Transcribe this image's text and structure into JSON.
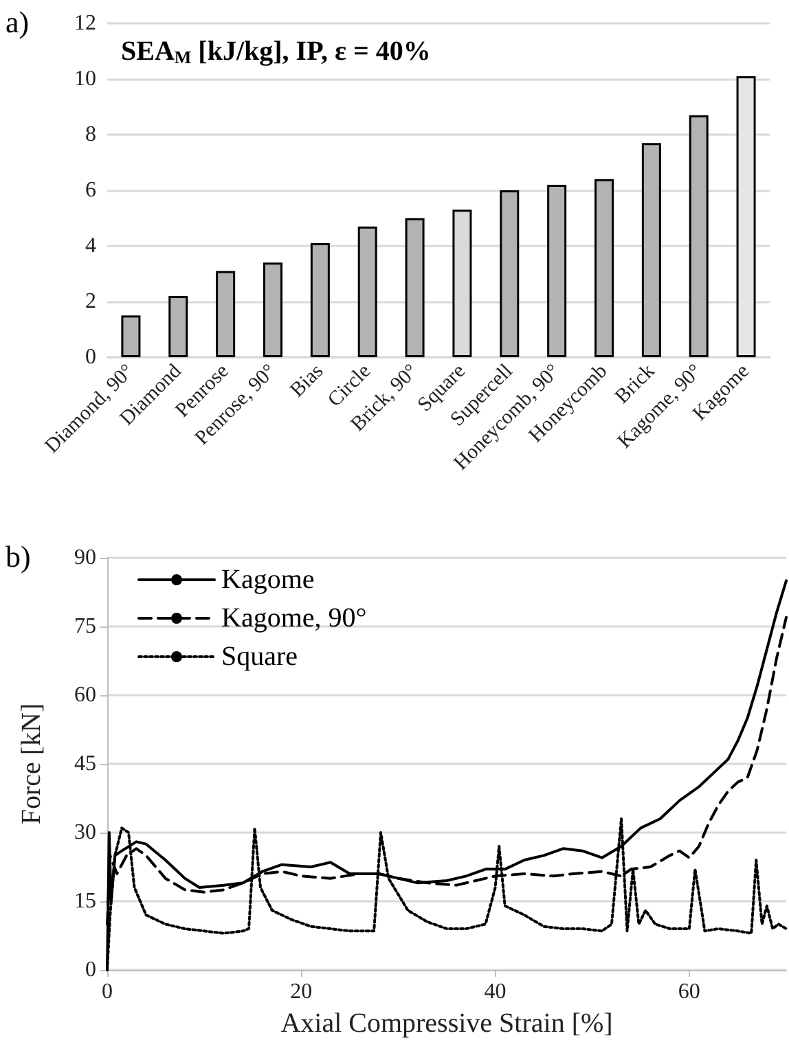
{
  "chart_data": [
    {
      "type": "bar",
      "title": "SEA$_{M}$ [kJ/kg], IP, ε = 40%",
      "annotations": [
        "a)"
      ],
      "categories": [
        "Diamond, 90°",
        "Diamond",
        "Penrose",
        "Penrose, 90°",
        "Bias",
        "Circle",
        "Brick, 90°",
        "Square",
        "Supercell",
        "Honeycomb, 90°",
        "Honeycomb",
        "Brick",
        "Kagome, 90°",
        "Kagome"
      ],
      "values": [
        1.5,
        2.2,
        3.1,
        3.4,
        4.1,
        4.7,
        5.0,
        5.3,
        6.0,
        6.2,
        6.4,
        7.7,
        8.7,
        10.1
      ],
      "colors": [
        "#b3b3b3",
        "#b3b3b3",
        "#b3b3b3",
        "#b3b3b3",
        "#b3b3b3",
        "#b3b3b3",
        "#b3b3b3",
        "#d9d9d9",
        "#b3b3b3",
        "#b3b3b3",
        "#b3b3b3",
        "#b3b3b3",
        "#b3b3b3",
        "#e6e6e6"
      ],
      "ylim": [
        0,
        12
      ],
      "yticks": [
        0,
        2,
        4,
        6,
        8,
        10,
        12
      ],
      "grid": "y",
      "legend": false
    },
    {
      "type": "line",
      "annotations": [
        "b)"
      ],
      "xlabel": "Axial Compressive Strain [%]",
      "ylabel": "Force [kN]",
      "xlim": [
        0,
        70
      ],
      "xticks": [
        0,
        20,
        40,
        60
      ],
      "ylim": [
        0,
        90
      ],
      "yticks": [
        0,
        15,
        30,
        45,
        60,
        75,
        90
      ],
      "grid": "y",
      "legend": "top left",
      "marker": "none",
      "series": [
        {
          "name": "Kagome",
          "color": "#000000",
          "line_style": "solid",
          "x": [
            0,
            0.2,
            0.4,
            0.8,
            1.5,
            3,
            4,
            6,
            8,
            9.5,
            12,
            14,
            16,
            18,
            21,
            23,
            25,
            28,
            30,
            32,
            35,
            37,
            39,
            41,
            43,
            45,
            47,
            49,
            51,
            53,
            55,
            57,
            59,
            61,
            63,
            64,
            65,
            66,
            67,
            68,
            69,
            70
          ],
          "values": [
            0,
            30,
            15,
            25,
            26,
            28,
            27.5,
            24,
            20,
            18,
            18.5,
            19,
            21.5,
            23,
            22.5,
            23.5,
            21,
            21,
            20,
            19,
            19.5,
            20.5,
            22,
            22,
            24,
            25,
            26.5,
            26,
            24.5,
            27,
            31,
            33,
            37,
            40,
            44,
            46,
            50,
            55,
            62,
            70,
            78,
            85
          ]
        },
        {
          "name": "Kagome, 90°",
          "color": "#000000",
          "line_style": "dashed",
          "x": [
            0,
            0.3,
            1,
            2,
            3,
            4,
            6,
            8,
            10,
            12,
            14,
            16,
            18,
            20,
            23,
            26,
            28,
            30,
            33,
            36,
            38,
            40,
            43,
            46,
            48,
            51,
            53,
            54,
            56,
            58,
            59,
            60,
            61,
            62,
            63,
            64,
            65,
            66,
            67,
            68,
            69,
            70
          ],
          "values": [
            10,
            25,
            21,
            25,
            26.5,
            25,
            20,
            17.5,
            17,
            17.5,
            19,
            21,
            21.5,
            20.5,
            20,
            21,
            21,
            20,
            19,
            18.5,
            19.5,
            20.5,
            21,
            20.5,
            21,
            21.5,
            20.5,
            22,
            22.5,
            25,
            26,
            24.5,
            27,
            32,
            36,
            39,
            41,
            42,
            48,
            57,
            68,
            77
          ]
        },
        {
          "name": "Square",
          "color": "#000000",
          "line_style": "dotted",
          "x": [
            0,
            0.3,
            0.8,
            1.5,
            2.2,
            2.8,
            4,
            6,
            8,
            10,
            12,
            14,
            14.6,
            15.2,
            15.8,
            17,
            19,
            21,
            23,
            25,
            27.5,
            28.2,
            29,
            31,
            33,
            35,
            37,
            39,
            40,
            40.4,
            41,
            43,
            45,
            47,
            49,
            51,
            52,
            53,
            53.6,
            54.2,
            54.8,
            55.5,
            56.5,
            58,
            60,
            60.6,
            61.2,
            61.6,
            63,
            65,
            66.4,
            66.9,
            67.5,
            68,
            68.6,
            69.2,
            70
          ],
          "values": [
            0,
            12,
            25,
            31,
            30,
            18,
            12,
            10,
            9,
            8.5,
            8,
            8.5,
            9,
            31,
            18,
            13,
            11,
            9.5,
            9,
            8.5,
            8.5,
            30,
            20,
            13,
            10.5,
            9,
            9,
            10,
            18,
            27,
            14,
            12,
            9.5,
            9,
            9,
            8.5,
            10,
            33,
            8.5,
            22,
            10,
            13,
            10,
            9,
            9,
            22,
            14,
            8.5,
            9,
            8.5,
            8,
            24,
            10,
            14,
            9,
            10,
            9
          ]
        }
      ]
    }
  ]
}
